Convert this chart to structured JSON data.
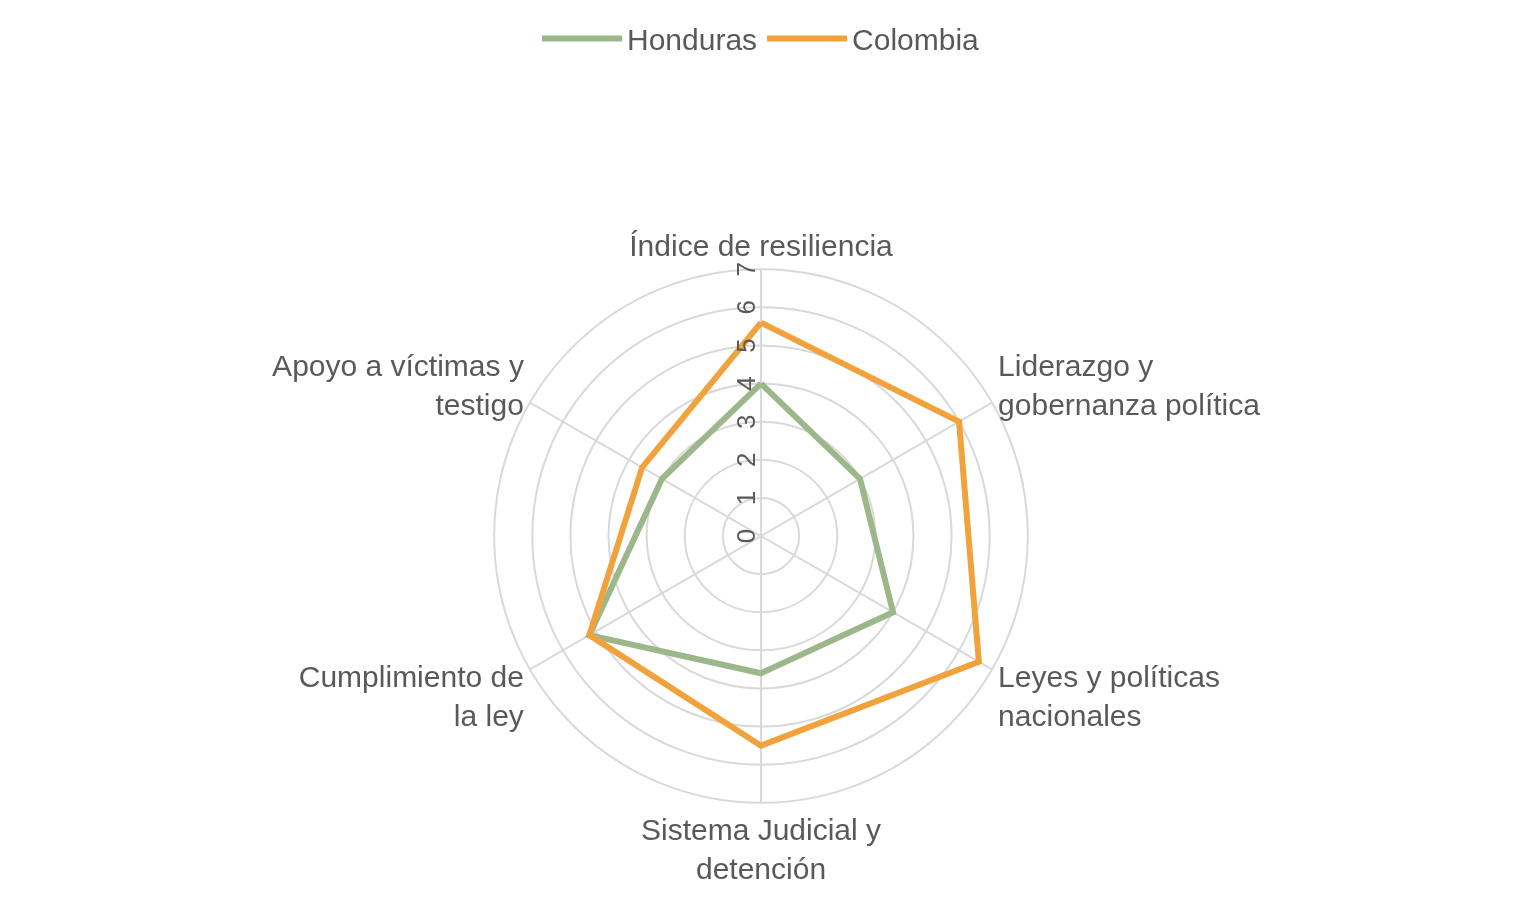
{
  "chart_data": {
    "type": "radar",
    "categories": [
      "Índice de resiliencia",
      "Liderazgo y\ngobernanza política",
      "Leyes y políticas\nnacionales",
      "Sistema Judicial y\ndetención",
      "Cumplimiento de\nla ley",
      "Apoyo a víctimas y\ntestigo"
    ],
    "series": [
      {
        "name": "Honduras",
        "color": "#9cb88a",
        "values": [
          4,
          3,
          4,
          3.6,
          5.2,
          3
        ]
      },
      {
        "name": "Colombia",
        "color": "#f2a23c",
        "values": [
          5.6,
          6,
          6.6,
          5.5,
          5.2,
          3.6
        ]
      }
    ],
    "ylim": [
      0,
      7
    ],
    "yticks": [
      0,
      1,
      2,
      3,
      4,
      5,
      6,
      7
    ],
    "grid": true,
    "legend": "top",
    "marker": "none",
    "line_style": "solid"
  }
}
